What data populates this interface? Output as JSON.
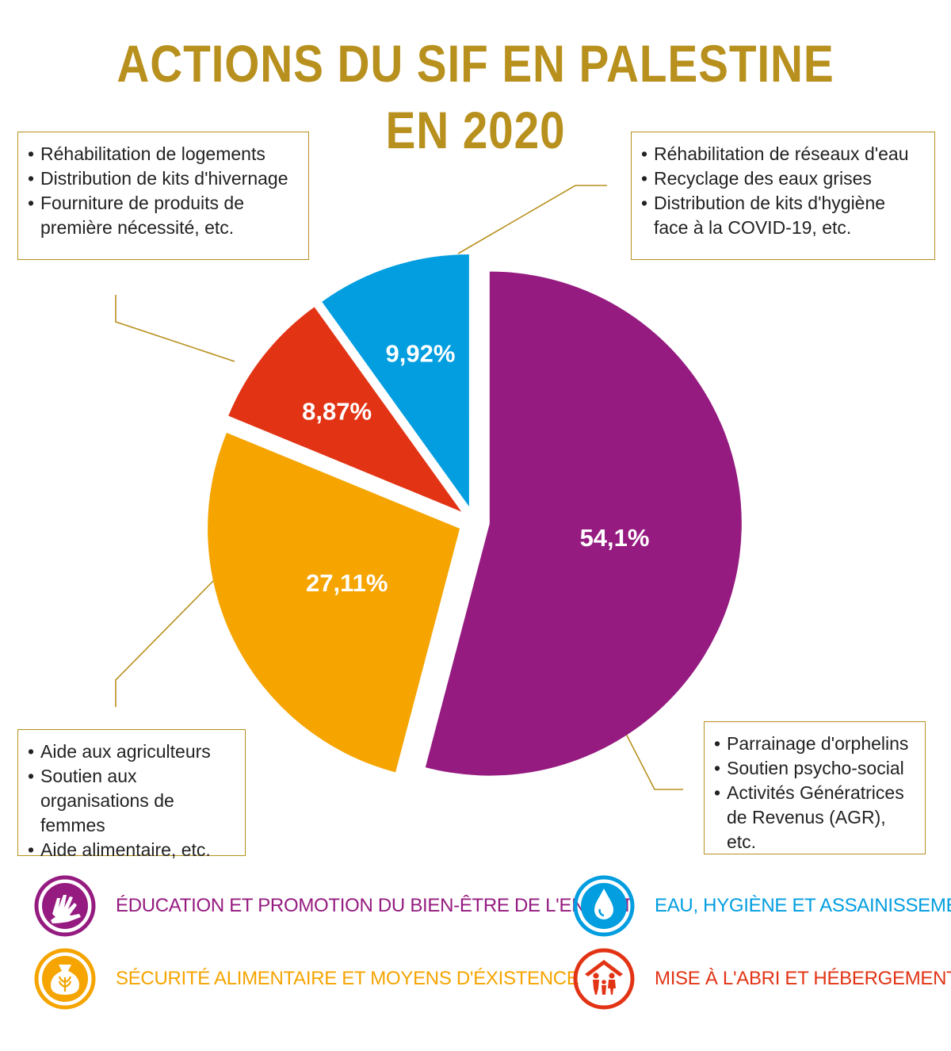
{
  "title": {
    "line1": "ACTIONS DU SIF EN PALESTINE",
    "line2": "EN 2020"
  },
  "colors": {
    "gold": "#b8901e",
    "purple": "#951b80",
    "blue": "#029ee0",
    "red": "#e23415",
    "orange": "#f5a400"
  },
  "chart_data": {
    "type": "pie",
    "exploded": true,
    "slices": [
      {
        "label": "ÉDUCATION ET PROMOTION DU BIEN-ÊTRE DE L'ENFANT",
        "value": 54.1,
        "value_label": "54,1%",
        "color": "#951b80"
      },
      {
        "label": "SÉCURITÉ ALIMENTAIRE ET MOYENS D'ÉXISTENCE",
        "value": 27.11,
        "value_label": "27,11%",
        "color": "#f5a400"
      },
      {
        "label": "MISE À L'ABRI ET HÉBERGEMENT",
        "value": 8.87,
        "value_label": "8,87%",
        "color": "#e23415"
      },
      {
        "label": "EAU, HYGIÈNE ET ASSAINISSEMENT",
        "value": 9.92,
        "value_label": "9,92%",
        "color": "#029ee0"
      }
    ]
  },
  "callouts": {
    "top_left": [
      "Réhabilitation de logements",
      "Distribution de kits d'hivernage",
      "Fourniture de produits de première nécessité, etc."
    ],
    "top_right": [
      "Réhabilitation de réseaux d'eau",
      "Recyclage des eaux grises",
      "Distribution de kits d'hygiène face à la COVID-19, etc."
    ],
    "bottom_left": [
      "Aide aux agriculteurs",
      "Soutien aux organisations de femmes",
      "Aide alimentaire, etc."
    ],
    "bottom_right": [
      "Parrainage d'orphelins",
      "Soutien psycho-social",
      "Activités Génératrices de Revenus (AGR), etc."
    ]
  },
  "legend": [
    {
      "key": "edu",
      "label": "ÉDUCATION ET PROMOTION DU BIEN-ÊTRE DE L'ENFANT",
      "color": "#951b80",
      "icon": "hand-child-icon"
    },
    {
      "key": "eau",
      "label": "EAU, HYGIÈNE ET ASSAINISSEMENT",
      "color": "#029ee0",
      "icon": "water-drop-icon"
    },
    {
      "key": "sec",
      "label": "SÉCURITÉ ALIMENTAIRE ET MOYENS D'ÉXISTENCE",
      "color": "#f5a400",
      "icon": "grain-sack-icon"
    },
    {
      "key": "abri",
      "label": "MISE À L'ABRI ET HÉBERGEMENT",
      "color": "#e23415",
      "icon": "family-shelter-icon"
    }
  ]
}
